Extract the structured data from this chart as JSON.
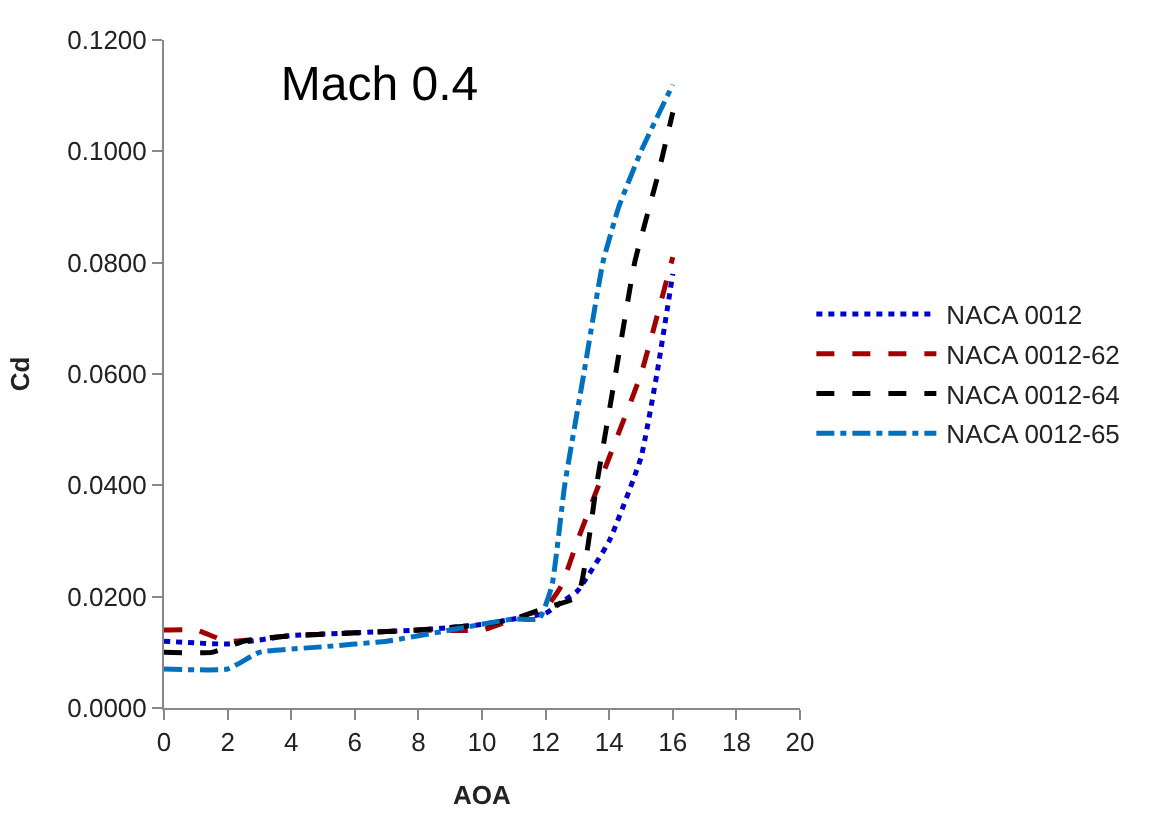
{
  "chart_data": {
    "type": "line",
    "title": "Mach 0.4",
    "xlabel": "AOA",
    "ylabel": "Cd",
    "xlim": [
      0,
      20
    ],
    "xticks": [
      0,
      2,
      4,
      6,
      8,
      10,
      12,
      14,
      16,
      18,
      20
    ],
    "ylim": [
      0,
      0.12
    ],
    "yticks": [
      {
        "value": 0,
        "label": "0.0000"
      },
      {
        "value": 0.02,
        "label": "0.0200"
      },
      {
        "value": 0.04,
        "label": "0.0400"
      },
      {
        "value": 0.06,
        "label": "0.0600"
      },
      {
        "value": 0.08,
        "label": "0.0800"
      },
      {
        "value": 0.1,
        "label": "0.1000"
      },
      {
        "value": 0.12,
        "label": "0.1200"
      }
    ],
    "legend": "right",
    "marker": "none",
    "series": [
      {
        "name": "NACA 0012",
        "color": "#0000cc",
        "line_style": "dotted",
        "x": [
          0,
          2,
          4,
          6,
          8,
          10,
          11,
          12,
          12.5,
          13,
          14,
          15,
          15.5,
          16
        ],
        "values": [
          0.012,
          0.0115,
          0.013,
          0.0135,
          0.014,
          0.015,
          0.016,
          0.017,
          0.019,
          0.021,
          0.03,
          0.045,
          0.06,
          0.078
        ]
      },
      {
        "name": "NACA 0012-62",
        "color": "#a00000",
        "line_style": "dashed",
        "x": [
          0,
          1,
          2,
          4,
          6,
          8,
          10,
          11,
          12,
          12.5,
          13,
          14,
          15,
          16
        ],
        "values": [
          0.014,
          0.014,
          0.012,
          0.013,
          0.0135,
          0.014,
          0.014,
          0.016,
          0.018,
          0.022,
          0.03,
          0.045,
          0.06,
          0.081
        ]
      },
      {
        "name": "NACA 0012-64",
        "color": "#000000",
        "line_style": "dashed",
        "x": [
          0,
          1.5,
          2.5,
          4,
          6,
          8,
          10,
          11,
          12,
          13,
          13.6,
          14.2,
          14.8,
          15.5,
          16
        ],
        "values": [
          0.01,
          0.01,
          0.012,
          0.013,
          0.0135,
          0.014,
          0.015,
          0.016,
          0.018,
          0.02,
          0.04,
          0.06,
          0.08,
          0.095,
          0.107
        ]
      },
      {
        "name": "NACA 0012-65",
        "color": "#0070c0",
        "line_style": "dashdot",
        "x": [
          0,
          2,
          3,
          5,
          7,
          9,
          11,
          11.8,
          12.2,
          12.6,
          13.2,
          13.8,
          14.3,
          15,
          16
        ],
        "values": [
          0.007,
          0.007,
          0.01,
          0.011,
          0.012,
          0.014,
          0.016,
          0.016,
          0.022,
          0.04,
          0.06,
          0.08,
          0.09,
          0.1,
          0.112
        ]
      }
    ]
  }
}
